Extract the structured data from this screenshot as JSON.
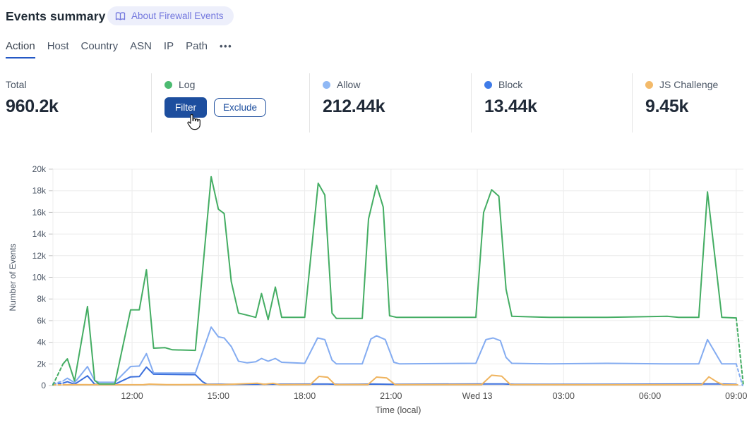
{
  "header": {
    "title": "Events summary",
    "badge": {
      "label": "About Firewall Events",
      "icon": "open-book-icon"
    }
  },
  "tabs": {
    "items": [
      {
        "label": "Action",
        "active": true
      },
      {
        "label": "Host",
        "active": false
      },
      {
        "label": "Country",
        "active": false
      },
      {
        "label": "ASN",
        "active": false
      },
      {
        "label": "IP",
        "active": false
      },
      {
        "label": "Path",
        "active": false
      }
    ],
    "more_label": "•••"
  },
  "stats": {
    "columns": [
      {
        "label": "Total",
        "value": "960.2k"
      },
      {
        "label": "Log",
        "dot_color": "#4cbb71",
        "buttons": [
          {
            "label": "Filter",
            "variant": "primary"
          },
          {
            "label": "Exclude",
            "variant": "outline"
          }
        ]
      },
      {
        "label": "Allow",
        "value": "212.44k",
        "dot_color": "#8fb8f5"
      },
      {
        "label": "Block",
        "value": "13.44k",
        "dot_color": "#3f7be8"
      },
      {
        "label": "JS Challenge",
        "value": "9.45k",
        "dot_color": "#f3ba6a"
      }
    ]
  },
  "colors": {
    "primary_button": "#1d4e9e",
    "tab_underline": "#2458c5",
    "badge_text": "#7377de",
    "badge_bg": "#edeffb",
    "gridline": "#ececec",
    "axis_text": "#4a5564"
  },
  "chart_data": {
    "type": "line",
    "xlabel": "Time (local)",
    "ylabel": "Number of Events",
    "x_domain_hours": [
      9.25,
      33.25
    ],
    "ylim": [
      0,
      20000
    ],
    "x_ticks": [
      {
        "t": 12,
        "label": "12:00"
      },
      {
        "t": 15,
        "label": "15:00"
      },
      {
        "t": 18,
        "label": "18:00"
      },
      {
        "t": 21,
        "label": "21:00"
      },
      {
        "t": 24,
        "label": "Wed 13"
      },
      {
        "t": 27,
        "label": "03:00"
      },
      {
        "t": 30,
        "label": "06:00"
      },
      {
        "t": 33,
        "label": "09:00"
      }
    ],
    "y_ticks": [
      {
        "v": 0,
        "label": "0"
      },
      {
        "v": 2000,
        "label": "2k"
      },
      {
        "v": 4000,
        "label": "4k"
      },
      {
        "v": 6000,
        "label": "6k"
      },
      {
        "v": 8000,
        "label": "8k"
      },
      {
        "v": 10000,
        "label": "10k"
      },
      {
        "v": 12000,
        "label": "12k"
      },
      {
        "v": 14000,
        "label": "14k"
      },
      {
        "v": 16000,
        "label": "16k"
      },
      {
        "v": 18000,
        "label": "18k"
      },
      {
        "v": 20000,
        "label": "20k"
      }
    ],
    "grid": true,
    "legend_position": "stats-row-above",
    "series": [
      {
        "name": "Block",
        "color": "#3b6fdc",
        "dash_start": [
          [
            9.25,
            100
          ],
          [
            9.6,
            220
          ]
        ],
        "points": [
          [
            9.6,
            220
          ],
          [
            9.75,
            350
          ],
          [
            10.0,
            120
          ],
          [
            10.45,
            900
          ],
          [
            10.7,
            120
          ],
          [
            11.4,
            120
          ],
          [
            11.95,
            800
          ],
          [
            12.25,
            830
          ],
          [
            12.5,
            1700
          ],
          [
            12.75,
            1050
          ],
          [
            14.2,
            1000
          ],
          [
            14.45,
            350
          ],
          [
            14.6,
            130
          ],
          [
            15.5,
            110
          ],
          [
            18.4,
            140
          ],
          [
            18.8,
            140
          ],
          [
            19.2,
            110
          ],
          [
            20.4,
            140
          ],
          [
            21.0,
            110
          ],
          [
            24.3,
            150
          ],
          [
            24.9,
            150
          ],
          [
            25.3,
            110
          ],
          [
            28.0,
            110
          ],
          [
            31.8,
            150
          ],
          [
            32.4,
            150
          ],
          [
            33.0,
            110
          ]
        ],
        "dash_end": []
      },
      {
        "name": "JS Challenge",
        "color": "#efb45f",
        "dash_start": [
          [
            9.25,
            60
          ],
          [
            9.6,
            70
          ]
        ],
        "points": [
          [
            9.6,
            70
          ],
          [
            10.4,
            80
          ],
          [
            11.5,
            70
          ],
          [
            12.4,
            80
          ],
          [
            12.6,
            130
          ],
          [
            13.2,
            80
          ],
          [
            14.6,
            100
          ],
          [
            15.1,
            80
          ],
          [
            16.35,
            210
          ],
          [
            16.6,
            120
          ],
          [
            16.9,
            200
          ],
          [
            17.15,
            80
          ],
          [
            18.2,
            100
          ],
          [
            18.5,
            850
          ],
          [
            18.8,
            760
          ],
          [
            19.05,
            90
          ],
          [
            20.2,
            90
          ],
          [
            20.5,
            780
          ],
          [
            20.85,
            700
          ],
          [
            21.15,
            80
          ],
          [
            24.15,
            90
          ],
          [
            24.5,
            950
          ],
          [
            24.85,
            860
          ],
          [
            25.15,
            90
          ],
          [
            27.5,
            70
          ],
          [
            30.5,
            70
          ],
          [
            31.8,
            80
          ],
          [
            32.05,
            800
          ],
          [
            32.35,
            300
          ],
          [
            32.55,
            80
          ],
          [
            33.05,
            70
          ]
        ],
        "dash_end": []
      },
      {
        "name": "Allow",
        "color": "#84acf1",
        "dash_start": [
          [
            9.25,
            150
          ],
          [
            9.6,
            420
          ]
        ],
        "points": [
          [
            9.6,
            420
          ],
          [
            9.75,
            680
          ],
          [
            10.0,
            260
          ],
          [
            10.45,
            1750
          ],
          [
            10.7,
            450
          ],
          [
            10.85,
            300
          ],
          [
            11.4,
            300
          ],
          [
            11.95,
            1760
          ],
          [
            12.25,
            1800
          ],
          [
            12.5,
            2950
          ],
          [
            12.75,
            1150
          ],
          [
            14.2,
            1150
          ],
          [
            14.75,
            5400
          ],
          [
            15.0,
            4500
          ],
          [
            15.2,
            4400
          ],
          [
            15.45,
            3600
          ],
          [
            15.7,
            2250
          ],
          [
            16.0,
            2100
          ],
          [
            16.3,
            2200
          ],
          [
            16.5,
            2500
          ],
          [
            16.73,
            2250
          ],
          [
            16.98,
            2500
          ],
          [
            17.2,
            2150
          ],
          [
            18.0,
            2050
          ],
          [
            18.45,
            4400
          ],
          [
            18.7,
            4250
          ],
          [
            18.95,
            2350
          ],
          [
            19.1,
            2000
          ],
          [
            20.0,
            2000
          ],
          [
            20.3,
            4300
          ],
          [
            20.5,
            4600
          ],
          [
            20.8,
            4250
          ],
          [
            21.1,
            2150
          ],
          [
            21.3,
            2000
          ],
          [
            23.95,
            2050
          ],
          [
            24.3,
            4250
          ],
          [
            24.55,
            4400
          ],
          [
            24.8,
            4150
          ],
          [
            25.0,
            2600
          ],
          [
            25.2,
            2050
          ],
          [
            26.5,
            2000
          ],
          [
            28.5,
            2050
          ],
          [
            30.5,
            2000
          ],
          [
            31.7,
            2000
          ],
          [
            32.0,
            4250
          ],
          [
            32.5,
            2000
          ],
          [
            33.0,
            2000
          ]
        ],
        "dash_end": [
          [
            33.0,
            2000
          ],
          [
            33.22,
            0
          ]
        ]
      },
      {
        "name": "Log",
        "color": "#44ad63",
        "dash_start": [
          [
            9.25,
            60
          ],
          [
            9.6,
            2000
          ]
        ],
        "points": [
          [
            9.6,
            2000
          ],
          [
            9.75,
            2470
          ],
          [
            10.0,
            430
          ],
          [
            10.45,
            7300
          ],
          [
            10.7,
            480
          ],
          [
            10.85,
            150
          ],
          [
            11.4,
            150
          ],
          [
            11.95,
            7000
          ],
          [
            12.25,
            7000
          ],
          [
            12.5,
            10700
          ],
          [
            12.75,
            3450
          ],
          [
            13.15,
            3500
          ],
          [
            13.4,
            3300
          ],
          [
            14.2,
            3250
          ],
          [
            14.75,
            19300
          ],
          [
            15.0,
            16300
          ],
          [
            15.2,
            15900
          ],
          [
            15.45,
            9600
          ],
          [
            15.7,
            6700
          ],
          [
            16.0,
            6500
          ],
          [
            16.3,
            6300
          ],
          [
            16.5,
            8500
          ],
          [
            16.73,
            6100
          ],
          [
            16.98,
            9100
          ],
          [
            17.2,
            6300
          ],
          [
            18.0,
            6300
          ],
          [
            18.47,
            18700
          ],
          [
            18.7,
            17600
          ],
          [
            18.95,
            6700
          ],
          [
            19.1,
            6200
          ],
          [
            20.0,
            6200
          ],
          [
            20.22,
            15400
          ],
          [
            20.5,
            18500
          ],
          [
            20.73,
            16500
          ],
          [
            20.95,
            6450
          ],
          [
            21.2,
            6300
          ],
          [
            23.95,
            6300
          ],
          [
            24.22,
            16000
          ],
          [
            24.5,
            18100
          ],
          [
            24.75,
            17500
          ],
          [
            25.0,
            8900
          ],
          [
            25.2,
            6400
          ],
          [
            26.5,
            6300
          ],
          [
            28.5,
            6300
          ],
          [
            30.6,
            6400
          ],
          [
            31.0,
            6300
          ],
          [
            31.7,
            6300
          ],
          [
            32.0,
            17900
          ],
          [
            32.5,
            6300
          ],
          [
            33.0,
            6250
          ]
        ],
        "dash_end": [
          [
            33.0,
            6250
          ],
          [
            33.25,
            0
          ]
        ]
      }
    ]
  }
}
